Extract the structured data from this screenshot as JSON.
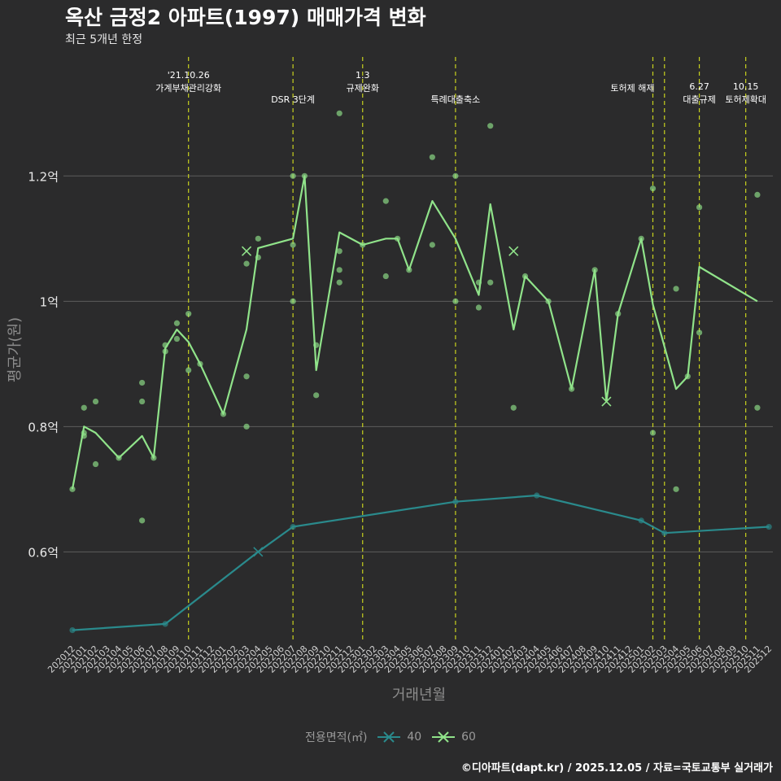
{
  "title": "옥산 금정2 아파트(1997) 매매가격 변화",
  "subtitle": "최근 5개년 한정",
  "footer": "©디아파트(dapt.kr) / 2025.12.05 / 자료=국토교통부 실거래가",
  "colors": {
    "background": "#2b2b2c",
    "grid": "#5c5c5c",
    "series_40": "#2a8a8c",
    "series_60": "#90e38a",
    "event_line": "#c8d21e"
  },
  "chart_data": {
    "type": "line",
    "xlabel": "거래년월",
    "ylabel": "평균가(원)",
    "ylim": [
      0.455,
      1.39
    ],
    "yticks": [
      {
        "value": 0.6,
        "label": "0.6억"
      },
      {
        "value": 0.8,
        "label": "0.8억"
      },
      {
        "value": 1.0,
        "label": "1억"
      },
      {
        "value": 1.2,
        "label": "1.2억"
      }
    ],
    "categories": [
      "202012",
      "202101",
      "202102",
      "202103",
      "202104",
      "202105",
      "202106",
      "202107",
      "202108",
      "202109",
      "202110",
      "202111",
      "202112",
      "202201",
      "202202",
      "202203",
      "202204",
      "202205",
      "202206",
      "202207",
      "202208",
      "202209",
      "202210",
      "202211",
      "202212",
      "202301",
      "202302",
      "202303",
      "202304",
      "202305",
      "202306",
      "202307",
      "202308",
      "202309",
      "202310",
      "202311",
      "202312",
      "202401",
      "202402",
      "202403",
      "202404",
      "202405",
      "202406",
      "202407",
      "202408",
      "202409",
      "202410",
      "202411",
      "202412",
      "202501",
      "202502",
      "202503",
      "202504",
      "202505",
      "202506",
      "202507",
      "202508",
      "202509",
      "202510",
      "202511",
      "202512"
    ],
    "legend_title": "전용면적(㎡)",
    "series": [
      {
        "name": "40",
        "line": [
          [
            "202012",
            0.475
          ],
          [
            "202108",
            0.485
          ],
          [
            "202204",
            0.6
          ],
          [
            "202207",
            0.64
          ],
          [
            "202309",
            0.68
          ],
          [
            "202404",
            0.69
          ],
          [
            "202501",
            0.65
          ],
          [
            "202503",
            0.63
          ],
          [
            "202512",
            0.64
          ]
        ],
        "points": [
          [
            "202012",
            0.475
          ],
          [
            "202108",
            0.485
          ],
          [
            "202207",
            0.64
          ],
          [
            "202309",
            0.68
          ],
          [
            "202404",
            0.69
          ],
          [
            "202501",
            0.65
          ],
          [
            "202503",
            0.63
          ],
          [
            "202512",
            0.64
          ]
        ],
        "crosses": [
          [
            "202204",
            0.6
          ]
        ]
      },
      {
        "name": "60",
        "line": [
          [
            "202012",
            0.7
          ],
          [
            "202101",
            0.8
          ],
          [
            "202102",
            0.79
          ],
          [
            "202104",
            0.75
          ],
          [
            "202106",
            0.785
          ],
          [
            "202107",
            0.75
          ],
          [
            "202108",
            0.925
          ],
          [
            "202109",
            0.955
          ],
          [
            "202110",
            0.935
          ],
          [
            "202111",
            0.9
          ],
          [
            "202201",
            0.82
          ],
          [
            "202203",
            0.955
          ],
          [
            "202204",
            1.085
          ],
          [
            "202207",
            1.1
          ],
          [
            "202208",
            1.2
          ],
          [
            "202209",
            0.89
          ],
          [
            "202211",
            1.11
          ],
          [
            "202301",
            1.09
          ],
          [
            "202303",
            1.1
          ],
          [
            "202304",
            1.1
          ],
          [
            "202305",
            1.05
          ],
          [
            "202307",
            1.16
          ],
          [
            "202309",
            1.1
          ],
          [
            "202311",
            1.01
          ],
          [
            "202312",
            1.155
          ],
          [
            "202402",
            0.955
          ],
          [
            "202403",
            1.04
          ],
          [
            "202405",
            1.0
          ],
          [
            "202407",
            0.86
          ],
          [
            "202409",
            1.05
          ],
          [
            "202410",
            0.84
          ],
          [
            "202411",
            0.98
          ],
          [
            "202501",
            1.1
          ],
          [
            "202502",
            0.995
          ],
          [
            "202504",
            0.86
          ],
          [
            "202505",
            0.88
          ],
          [
            "202506",
            1.055
          ],
          [
            "202511",
            1.0
          ]
        ],
        "points": [
          [
            "202012",
            0.7
          ],
          [
            "202101",
            0.83
          ],
          [
            "202101",
            0.785
          ],
          [
            "202101",
            0.79
          ],
          [
            "202102",
            0.84
          ],
          [
            "202102",
            0.74
          ],
          [
            "202104",
            0.75
          ],
          [
            "202106",
            0.87
          ],
          [
            "202106",
            0.84
          ],
          [
            "202106",
            0.65
          ],
          [
            "202107",
            0.75
          ],
          [
            "202108",
            0.93
          ],
          [
            "202108",
            0.92
          ],
          [
            "202109",
            0.965
          ],
          [
            "202109",
            0.94
          ],
          [
            "202110",
            0.98
          ],
          [
            "202110",
            0.89
          ],
          [
            "202111",
            0.9
          ],
          [
            "202201",
            0.82
          ],
          [
            "202203",
            1.06
          ],
          [
            "202203",
            0.88
          ],
          [
            "202203",
            0.8
          ],
          [
            "202204",
            1.1
          ],
          [
            "202204",
            1.07
          ],
          [
            "202207",
            1.2
          ],
          [
            "202207",
            1.09
          ],
          [
            "202207",
            1.0
          ],
          [
            "202208",
            1.2
          ],
          [
            "202209",
            0.93
          ],
          [
            "202209",
            0.85
          ],
          [
            "202211",
            1.3
          ],
          [
            "202211",
            1.08
          ],
          [
            "202211",
            1.05
          ],
          [
            "202211",
            1.03
          ],
          [
            "202301",
            1.09
          ],
          [
            "202303",
            1.16
          ],
          [
            "202303",
            1.04
          ],
          [
            "202304",
            1.1
          ],
          [
            "202305",
            1.05
          ],
          [
            "202307",
            1.23
          ],
          [
            "202307",
            1.09
          ],
          [
            "202309",
            1.2
          ],
          [
            "202309",
            1.0
          ],
          [
            "202311",
            1.03
          ],
          [
            "202311",
            0.99
          ],
          [
            "202312",
            1.28
          ],
          [
            "202312",
            1.03
          ],
          [
            "202402",
            0.83
          ],
          [
            "202403",
            1.04
          ],
          [
            "202405",
            1.0
          ],
          [
            "202407",
            0.86
          ],
          [
            "202409",
            1.05
          ],
          [
            "202411",
            0.98
          ],
          [
            "202501",
            1.1
          ],
          [
            "202502",
            1.18
          ],
          [
            "202502",
            0.79
          ],
          [
            "202504",
            1.02
          ],
          [
            "202504",
            0.7
          ],
          [
            "202505",
            0.88
          ],
          [
            "202506",
            1.15
          ],
          [
            "202506",
            0.95
          ],
          [
            "202511",
            1.17
          ],
          [
            "202511",
            0.83
          ]
        ],
        "crosses": [
          [
            "202203",
            1.08
          ],
          [
            "202402",
            1.08
          ],
          [
            "202410",
            0.84
          ]
        ]
      }
    ],
    "events": [
      {
        "month": "202110",
        "lines": [
          "'21.10.26",
          "가계부채관리강화"
        ],
        "row": 1
      },
      {
        "month": "202207",
        "lines": [
          "DSR 3단계"
        ],
        "row": 2
      },
      {
        "month": "202301",
        "lines": [
          "1.3",
          "규제완화"
        ],
        "row": 1
      },
      {
        "month": "202309",
        "lines": [
          "특례대출축소"
        ],
        "row": 2
      },
      {
        "month": "202502",
        "lines": [
          "토허제 해제"
        ],
        "row": 1,
        "align": "end"
      },
      {
        "month": "202503",
        "lines": [],
        "row": 1
      },
      {
        "month": "202506",
        "lines": [
          "6.27",
          "대출규제"
        ],
        "row": 2
      },
      {
        "month": "202510",
        "lines": [
          "10.15",
          "토허제확대"
        ],
        "row": 2
      }
    ]
  }
}
